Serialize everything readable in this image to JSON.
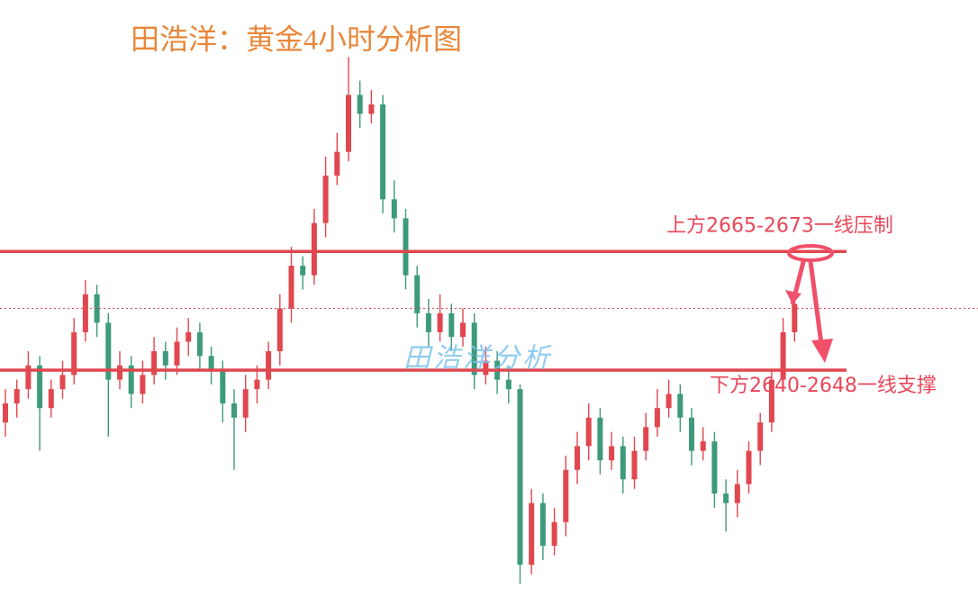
{
  "chart_data": {
    "type": "candlestick",
    "title": "田浩洋：黄金4小时分析图",
    "watermark": "田浩洋分析",
    "up_color": "#e0474f",
    "down_color": "#3d9a7c",
    "ylim": [
      2596,
      2722
    ],
    "open": [
      2633,
      2637,
      2640,
      2645,
      2636,
      2640,
      2643,
      2652,
      2660,
      2654,
      2642,
      2645,
      2639,
      2643,
      2648,
      2645,
      2650,
      2652,
      2647,
      2644,
      2637,
      2634,
      2640,
      2642,
      2648,
      2657,
      2666,
      2664,
      2675,
      2685,
      2690,
      2702,
      2698,
      2700,
      2680,
      2676,
      2664,
      2656,
      2652,
      2656,
      2651,
      2654,
      2643,
      2646,
      2642,
      2640,
      2603,
      2616,
      2607,
      2612,
      2623,
      2628,
      2634,
      2625,
      2628,
      2621,
      2627,
      2632,
      2636,
      2639,
      2634,
      2627,
      2629,
      2618,
      2616,
      2620,
      2627,
      2633,
      2642,
      2652
    ],
    "high": [
      2640,
      2642,
      2648,
      2647,
      2642,
      2646,
      2655,
      2663,
      2662,
      2656,
      2648,
      2647,
      2646,
      2651,
      2650,
      2653,
      2655,
      2654,
      2649,
      2646,
      2640,
      2643,
      2645,
      2650,
      2660,
      2670,
      2668,
      2678,
      2689,
      2694,
      2710,
      2705,
      2703,
      2702,
      2684,
      2678,
      2666,
      2659,
      2660,
      2658,
      2657,
      2656,
      2649,
      2648,
      2645,
      2641,
      2619,
      2618,
      2615,
      2626,
      2631,
      2637,
      2636,
      2631,
      2630,
      2630,
      2635,
      2640,
      2642,
      2641,
      2636,
      2632,
      2631,
      2621,
      2623,
      2629,
      2635,
      2644,
      2655,
      2661
    ],
    "low": [
      2630,
      2634,
      2638,
      2627,
      2634,
      2638,
      2641,
      2650,
      2651,
      2630,
      2640,
      2636,
      2637,
      2641,
      2642,
      2643,
      2647,
      2644,
      2641,
      2633,
      2623,
      2631,
      2637,
      2640,
      2645,
      2654,
      2661,
      2662,
      2672,
      2683,
      2688,
      2695,
      2696,
      2677,
      2673,
      2661,
      2653,
      2649,
      2650,
      2648,
      2649,
      2640,
      2641,
      2639,
      2637,
      2599,
      2601,
      2604,
      2605,
      2609,
      2620,
      2625,
      2622,
      2623,
      2618,
      2619,
      2625,
      2630,
      2634,
      2631,
      2624,
      2625,
      2615,
      2610,
      2613,
      2618,
      2624,
      2631,
      2640,
      2650
    ],
    "close": [
      2637,
      2640,
      2645,
      2636,
      2640,
      2643,
      2652,
      2660,
      2654,
      2642,
      2645,
      2639,
      2643,
      2648,
      2645,
      2650,
      2652,
      2647,
      2644,
      2637,
      2634,
      2640,
      2642,
      2648,
      2657,
      2666,
      2664,
      2675,
      2685,
      2690,
      2702,
      2698,
      2700,
      2680,
      2676,
      2664,
      2656,
      2652,
      2656,
      2651,
      2654,
      2643,
      2646,
      2642,
      2640,
      2603,
      2616,
      2607,
      2612,
      2623,
      2628,
      2634,
      2625,
      2628,
      2621,
      2627,
      2632,
      2636,
      2639,
      2634,
      2627,
      2629,
      2618,
      2616,
      2620,
      2627,
      2633,
      2642,
      2652,
      2658
    ],
    "last_price": 2657,
    "levels": [
      {
        "value": 2669,
        "label": "上方2665-2673一线压制",
        "color": "#e0474f"
      },
      {
        "value": 2644,
        "label": "下方2640-2648一线支撑",
        "color": "#e0474f"
      }
    ]
  }
}
